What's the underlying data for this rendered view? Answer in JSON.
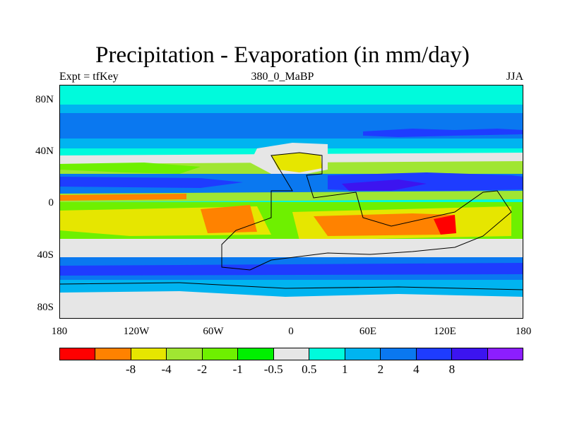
{
  "title": "Precipitation - Evaporation (in mm/day)",
  "subtitle_left": "Expt = tfKey",
  "subtitle_center": "380_0_MaBP",
  "subtitle_right": "JJA",
  "y_ticks": [
    "80N",
    "40N",
    "0",
    "40S",
    "80S"
  ],
  "x_ticks": [
    "180",
    "120W",
    "60W",
    "0",
    "60E",
    "120E",
    "180"
  ],
  "colorbar": {
    "colors": [
      "#ff0000",
      "#ff8200",
      "#e6e600",
      "#a0e632",
      "#6ef000",
      "#00f000",
      "#e6e6e6",
      "#00fadc",
      "#00b4f0",
      "#0a78f0",
      "#1e3cff",
      "#3c14f0",
      "#8c1eff"
    ],
    "labels": [
      "-8",
      "-4",
      "-2",
      "-1",
      "-0.5",
      "0.5",
      "1",
      "2",
      "4",
      "8"
    ]
  }
}
